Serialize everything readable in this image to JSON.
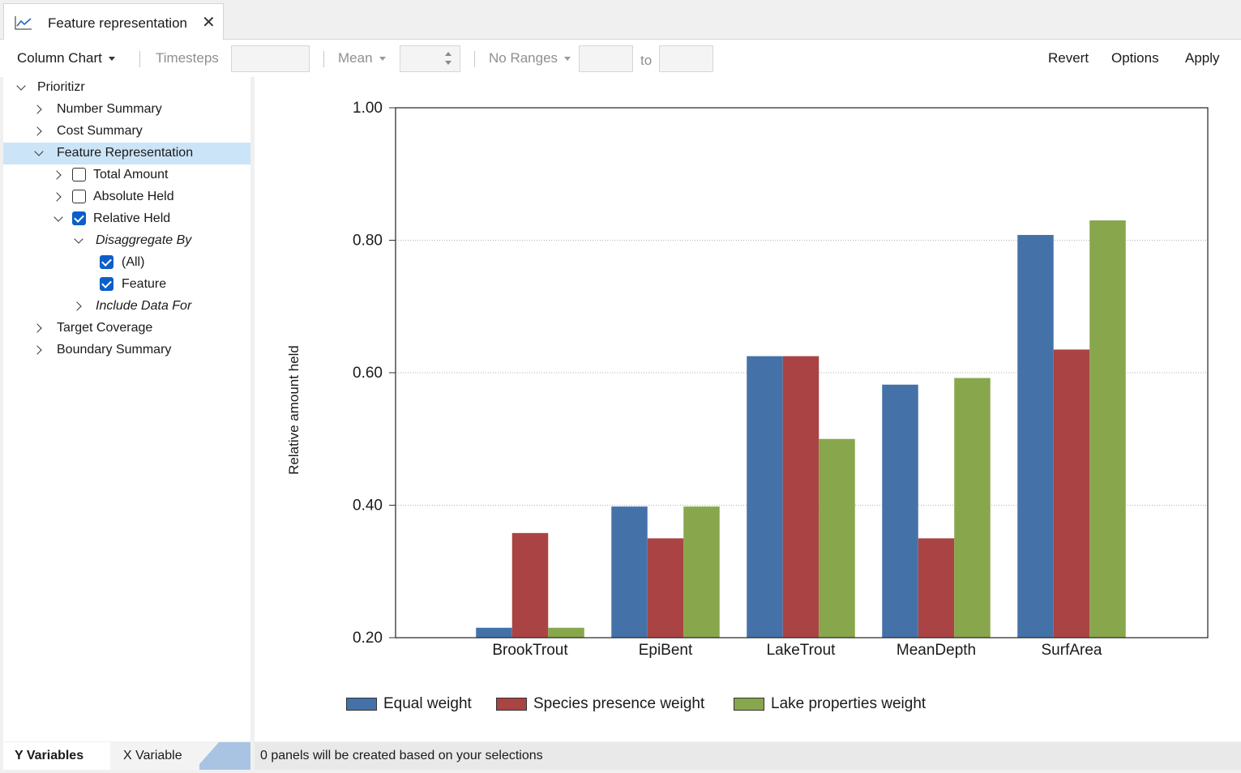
{
  "tab": {
    "title": "Feature representation",
    "close": "✕",
    "icon": "line-chart-icon"
  },
  "toolbar": {
    "chart_type": "Column Chart",
    "timesteps_label": "Timesteps",
    "timesteps_value": "",
    "aggregate": "Mean",
    "aggregate_value": "",
    "ranges": "No Ranges",
    "range_from": "",
    "to_label": "to",
    "range_to": "",
    "revert": "Revert",
    "options": "Options",
    "apply": "Apply"
  },
  "tree": {
    "root": "Prioritizr",
    "number_summary": "Number Summary",
    "cost_summary": "Cost Summary",
    "feature_representation": "Feature Representation",
    "total_amount": "Total Amount",
    "absolute_held": "Absolute Held",
    "relative_held": "Relative Held",
    "disaggregate_by": "Disaggregate By",
    "all": "(All)",
    "feature": "Feature",
    "include_data_for": "Include Data For",
    "target_coverage": "Target Coverage",
    "boundary_summary": "Boundary Summary"
  },
  "bottom": {
    "y_variables": "Y Variables",
    "x_variable": "X Variable",
    "status": "0 panels will be created based on your selections"
  },
  "colors": {
    "equal": "#4472a8",
    "species": "#aa4444",
    "lake": "#88a64c",
    "selection": "#cce4f7"
  },
  "chart_data": {
    "type": "bar",
    "title": "",
    "xlabel": "",
    "ylabel": "Relative amount held",
    "ylim": [
      0.2,
      1.0
    ],
    "yticks": [
      "0.20",
      "0.40",
      "0.60",
      "0.80",
      "1.00"
    ],
    "grid": true,
    "legend_position": "bottom",
    "categories": [
      "BrookTrout",
      "EpiBent",
      "LakeTrout",
      "MeanDepth",
      "SurfArea"
    ],
    "series": [
      {
        "name": "Equal weight",
        "values": [
          0.215,
          0.398,
          0.625,
          0.582,
          0.808
        ]
      },
      {
        "name": "Species presence weight",
        "values": [
          0.358,
          0.35,
          0.625,
          0.35,
          0.635
        ]
      },
      {
        "name": "Lake properties weight",
        "values": [
          0.215,
          0.398,
          0.5,
          0.592,
          0.83
        ]
      }
    ]
  }
}
